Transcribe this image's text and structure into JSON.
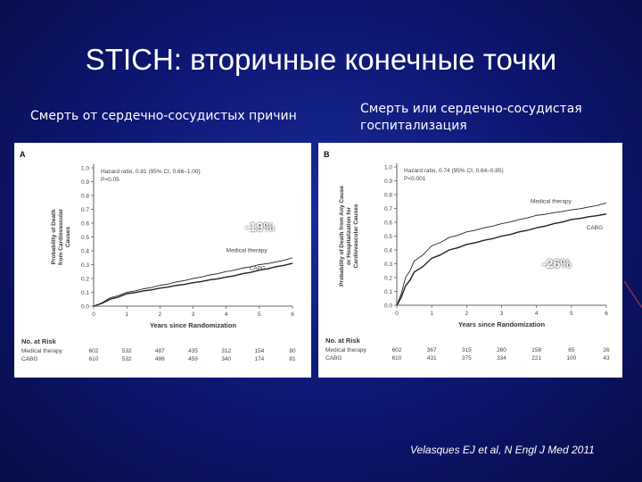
{
  "slide": {
    "title": "STICH: вторичные конечные точки",
    "left_caption": "Смерть от сердечно-сосудистых причин",
    "right_caption": "Смерть или сердечно-сосудистая госпитализация",
    "left_reduction": "-19%",
    "right_reduction": "-26%",
    "citation": "Velasques EJ et al, N Engl J Med 2011"
  },
  "chart_data": [
    {
      "type": "line",
      "panel_label": "A",
      "title": "",
      "xlabel": "Years since Randomization",
      "ylabel": "Probability of Death from Cardiovascular Causes",
      "xlim": [
        0,
        6
      ],
      "ylim": [
        0,
        1.0
      ],
      "x_ticks": [
        "0",
        "1",
        "2",
        "3",
        "4",
        "5",
        "6"
      ],
      "y_ticks": [
        "0.0",
        "0.1",
        "0.2",
        "0.3",
        "0.4",
        "0.5",
        "0.6",
        "0.7",
        "0.8",
        "0.9",
        "1.0"
      ],
      "annotation": [
        "Hazard ratio, 0.81 (95% CI, 0.66–1.00)",
        "P=0.05"
      ],
      "series": [
        {
          "name": "Medical therapy",
          "color": "#222222",
          "x": [
            0,
            0.5,
            1,
            1.5,
            2,
            2.5,
            3,
            3.5,
            4,
            4.5,
            5,
            5.5,
            6
          ],
          "y": [
            0,
            0.06,
            0.1,
            0.125,
            0.15,
            0.175,
            0.2,
            0.225,
            0.25,
            0.275,
            0.3,
            0.32,
            0.35
          ]
        },
        {
          "name": "CABG",
          "color": "#222222",
          "x": [
            0,
            0.5,
            1,
            1.5,
            2,
            2.5,
            3,
            3.5,
            4,
            4.5,
            5,
            5.5,
            6
          ],
          "y": [
            0,
            0.05,
            0.09,
            0.11,
            0.13,
            0.15,
            0.17,
            0.19,
            0.21,
            0.235,
            0.26,
            0.285,
            0.31
          ]
        }
      ],
      "at_risk": {
        "title": "No. at Risk",
        "rows": [
          {
            "label": "Medical therapy",
            "values": [
              "602",
              "532",
              "487",
              "435",
              "312",
              "154",
              "80"
            ]
          },
          {
            "label": "CABG",
            "values": [
              "610",
              "532",
              "486",
              "459",
              "340",
              "174",
              "81"
            ]
          }
        ]
      }
    },
    {
      "type": "line",
      "panel_label": "B",
      "title": "",
      "xlabel": "Years since Randomization",
      "ylabel": "Probability of Death from Any Cause or Hospitalization for Cardiovascular Causes",
      "xlim": [
        0,
        6
      ],
      "ylim": [
        0,
        1.0
      ],
      "x_ticks": [
        "0",
        "1",
        "2",
        "3",
        "4",
        "5",
        "6"
      ],
      "y_ticks": [
        "0.0",
        "0.1",
        "0.2",
        "0.3",
        "0.4",
        "0.5",
        "0.6",
        "0.7",
        "0.8",
        "0.9",
        "1.0"
      ],
      "annotation": [
        "Hazard ratio, 0.74 (95% CI, 0.64–0.85)",
        "P<0.001"
      ],
      "series": [
        {
          "name": "Medical therapy",
          "color": "#222222",
          "x": [
            0,
            0.25,
            0.5,
            1,
            1.5,
            2,
            2.5,
            3,
            3.5,
            4,
            4.5,
            5,
            5.5,
            6
          ],
          "y": [
            0,
            0.2,
            0.32,
            0.43,
            0.49,
            0.53,
            0.56,
            0.59,
            0.62,
            0.65,
            0.67,
            0.69,
            0.71,
            0.74
          ]
        },
        {
          "name": "CABG",
          "color": "#222222",
          "x": [
            0,
            0.25,
            0.5,
            1,
            1.5,
            2,
            2.5,
            3,
            3.5,
            4,
            4.5,
            5,
            5.5,
            6
          ],
          "y": [
            0,
            0.14,
            0.24,
            0.34,
            0.4,
            0.44,
            0.47,
            0.5,
            0.53,
            0.56,
            0.59,
            0.62,
            0.64,
            0.66
          ]
        }
      ],
      "at_risk": {
        "title": "No. at Risk",
        "rows": [
          {
            "label": "Medical therapy",
            "values": [
              "602",
              "367",
              "315",
              "260",
              "158",
              "65",
              "26"
            ]
          },
          {
            "label": "CABG",
            "values": [
              "610",
              "431",
              "375",
              "334",
              "221",
              "100",
              "43"
            ]
          }
        ]
      }
    }
  ]
}
